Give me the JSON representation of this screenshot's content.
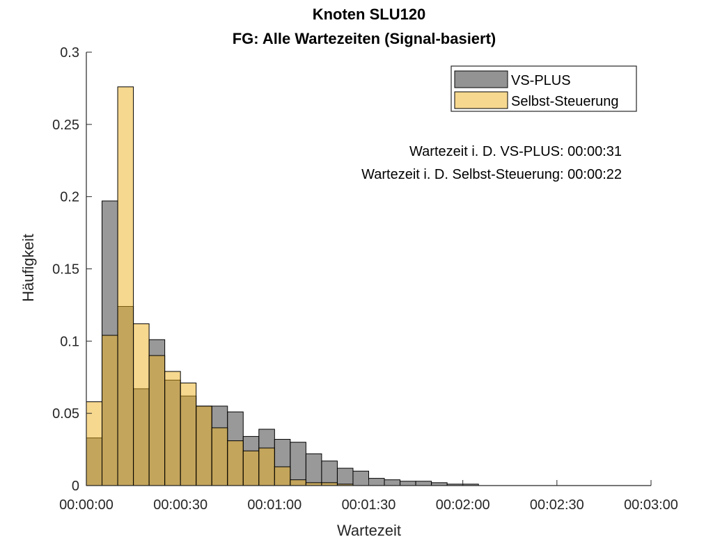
{
  "chart_data": {
    "type": "histogram",
    "title": [
      "Knoten SLU120",
      "FG: Alle Wartezeiten (Signal-basiert)"
    ],
    "xlabel": "Wartezeit",
    "ylabel": "Häufigkeit",
    "xlim_seconds": [
      0,
      180
    ],
    "ylim": [
      0,
      0.3
    ],
    "xticks_seconds": [
      0,
      30,
      60,
      90,
      120,
      150,
      180
    ],
    "xtick_labels": [
      "00:00:00",
      "00:00:30",
      "00:01:00",
      "00:01:30",
      "00:02:00",
      "00:02:30",
      "00:03:00"
    ],
    "yticks": [
      0,
      0.05,
      0.1,
      0.15,
      0.2,
      0.25,
      0.3
    ],
    "ytick_labels": [
      "0",
      "0.05",
      "0.1",
      "0.15",
      "0.2",
      "0.25",
      "0.3"
    ],
    "bin_width_seconds": 5,
    "bin_starts_seconds": [
      0,
      5,
      10,
      15,
      20,
      25,
      30,
      35,
      40,
      45,
      50,
      55,
      60,
      65,
      70,
      75,
      80,
      85,
      90,
      95,
      100,
      105,
      110,
      115,
      120
    ],
    "series": [
      {
        "name": "VS-PLUS",
        "color": "#808080",
        "values": [
          0.033,
          0.197,
          0.124,
          0.067,
          0.101,
          0.073,
          0.062,
          0.055,
          0.055,
          0.051,
          0.034,
          0.039,
          0.032,
          0.03,
          0.022,
          0.017,
          0.012,
          0.01,
          0.005,
          0.004,
          0.003,
          0.003,
          0.002,
          0.001,
          0.001
        ]
      },
      {
        "name": "Selbst-Steuerung",
        "color": "#EDB120",
        "values": [
          0.058,
          0.104,
          0.276,
          0.112,
          0.09,
          0.079,
          0.071,
          0.055,
          0.04,
          0.031,
          0.024,
          0.026,
          0.013,
          0.004,
          0.002,
          0.002,
          0.001,
          0,
          0,
          0,
          0,
          0,
          0,
          0,
          0
        ]
      }
    ],
    "legend": {
      "position": "top-right",
      "entries": [
        "VS-PLUS",
        "Selbst-Steuerung"
      ]
    },
    "annotations": [
      "Wartezeit i. D. VS-PLUS: 00:00:31",
      "Wartezeit i. D. Selbst-Steuerung: 00:00:22"
    ]
  }
}
